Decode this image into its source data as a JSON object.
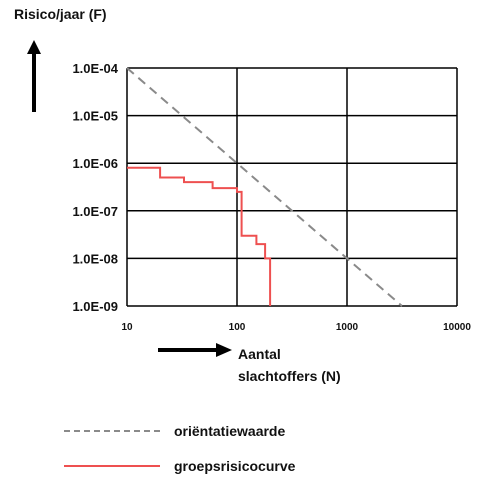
{
  "chart_data": {
    "type": "line",
    "ylabel": "Risico/jaar (F)",
    "xlabel_line1": "Aantal",
    "xlabel_line2": "slachtoffers (N)",
    "x_scale": "log",
    "y_scale": "log",
    "xlim": [
      10,
      10000
    ],
    "ylim": [
      1e-09,
      0.0001
    ],
    "x_ticks": [
      "10",
      "100",
      "1000",
      "10000"
    ],
    "y_ticks": [
      "1.0E-09",
      "1.0E-08",
      "1.0E-07",
      "1.0E-06",
      "1.0E-05",
      "1.0E-04"
    ],
    "grid": true,
    "series": [
      {
        "name": "oriëntatiewaarde",
        "style": "dashed",
        "color": "#8a8a8a",
        "x": [
          10,
          100,
          1000,
          3162
        ],
        "y": [
          0.0001,
          1e-06,
          1e-08,
          1e-09
        ]
      },
      {
        "name": "groepsrisicocurve",
        "style": "step",
        "color": "#ee5050",
        "x": [
          10,
          20,
          20,
          33,
          33,
          60,
          60,
          100,
          100,
          110,
          110,
          150,
          150,
          180,
          180,
          200,
          200
        ],
        "y": [
          8e-07,
          8e-07,
          5e-07,
          5e-07,
          4e-07,
          4e-07,
          3e-07,
          3e-07,
          2.5e-07,
          2.5e-07,
          3e-08,
          3e-08,
          2e-08,
          2e-08,
          1e-08,
          1e-08,
          1e-09
        ]
      }
    ]
  }
}
